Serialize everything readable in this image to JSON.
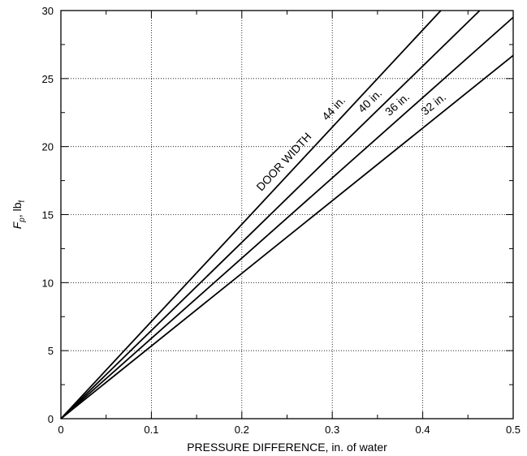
{
  "chart_data": {
    "type": "line",
    "title": "",
    "xlabel": "PRESSURE DIFFERENCE, in. of water",
    "ylabel": {
      "main": "F",
      "main_sub": "p",
      "unit": ", lb",
      "unit_sub": "f"
    },
    "xlim": [
      0,
      0.5
    ],
    "ylim": [
      0,
      30
    ],
    "x_ticks": [
      "0",
      "0.1",
      "0.2",
      "0.3",
      "0.4",
      "0.5"
    ],
    "y_ticks": [
      "0",
      "5",
      "10",
      "15",
      "20",
      "25",
      "30"
    ],
    "grid": "dotted",
    "legend_heading": "DOOR WIDTH",
    "series": [
      {
        "name": "44 in.",
        "x": [
          0,
          0.42
        ],
        "y": [
          0,
          30.0
        ]
      },
      {
        "name": "40 in.",
        "x": [
          0,
          0.463
        ],
        "y": [
          0,
          30.0
        ]
      },
      {
        "name": "36 in.",
        "x": [
          0,
          0.5
        ],
        "y": [
          0,
          29.5
        ]
      },
      {
        "name": "32 in.",
        "x": [
          0,
          0.5
        ],
        "y": [
          0,
          26.7
        ]
      }
    ]
  }
}
